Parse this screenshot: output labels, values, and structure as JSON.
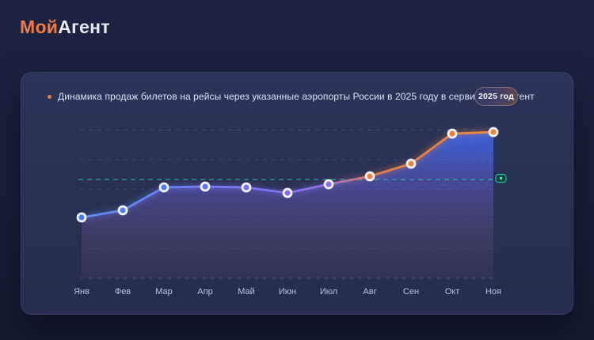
{
  "logo": {
    "part1": "Мой",
    "part2": "Агент"
  },
  "card": {
    "title": "Динамика продаж билетов на рейсы через указанные аэропорты России в 2025 году в сервисе Мой Агент",
    "year_badge": "2025 год"
  },
  "chart_data": {
    "type": "area",
    "title": "Динамика продаж билетов на рейсы через указанные аэропорты России в 2025 году в сервисе Мой Агент",
    "categories": [
      "Янв",
      "Фев",
      "Мар",
      "Апр",
      "Май",
      "Июн",
      "Июл",
      "Авг",
      "Сен",
      "Окт",
      "Ноя"
    ],
    "values": [
      77,
      86,
      115,
      116,
      115,
      108,
      119,
      129,
      145,
      183,
      185
    ],
    "unit": "relative index (no y-axis tick labels shown in chart)",
    "ylim": [
      0,
      200
    ],
    "threshold_value": 125,
    "grid": "horizontal dashed lines, no y labels",
    "legend_position": "none",
    "xlabel": "",
    "ylabel": "",
    "point_colors": [
      "#4a7cf5",
      "#4a7cf5",
      "#4d7af4",
      "#5a76f2",
      "#7b6cf0",
      "#886af0",
      "#8f6cf2",
      "#e8833f",
      "#ea8338",
      "#ef8133",
      "#f1872e"
    ],
    "line_gradient": [
      "#5d8df8",
      "#7e72f2",
      "#8f6fe8",
      "#e57b47",
      "#f08a3c"
    ],
    "colors": {
      "threshold": "#2fd0ad",
      "accent_orange": "#ee7c45",
      "grid": "#93a4d6",
      "point_ring": "#f4f7ff",
      "area_top": "#3b67eb",
      "area_bottom": "#483e64"
    }
  }
}
